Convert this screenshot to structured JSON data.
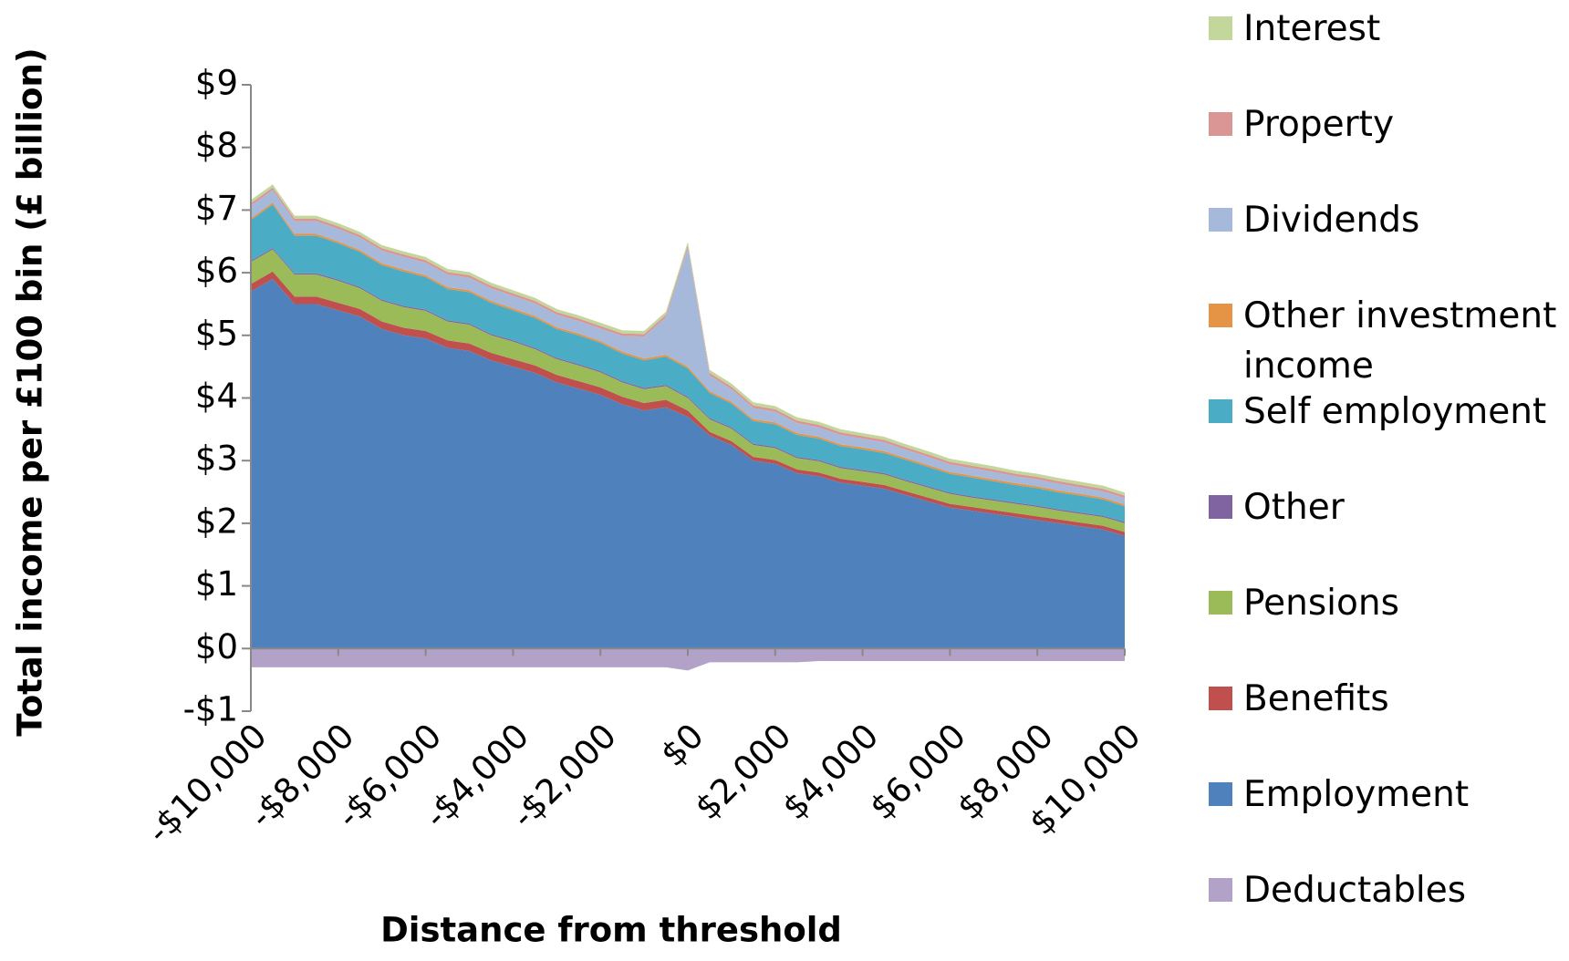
{
  "chart_data": {
    "type": "stacked_area",
    "x_label": "Distance from threshold",
    "y_label": "Total income per £100 bin (£ billion)",
    "x": [
      -10000,
      -9500,
      -9000,
      -8500,
      -8000,
      -7500,
      -7000,
      -6500,
      -6000,
      -5500,
      -5000,
      -4500,
      -4000,
      -3500,
      -3000,
      -2500,
      -2000,
      -1500,
      -1000,
      -500,
      0,
      500,
      1000,
      1500,
      2000,
      2500,
      3000,
      3500,
      4000,
      4500,
      5000,
      5500,
      6000,
      6500,
      7000,
      7500,
      8000,
      8500,
      9000,
      9500,
      10000
    ],
    "xlim": [
      -10000,
      10000
    ],
    "xticks": [
      {
        "value": -10000,
        "label": "-$10,000"
      },
      {
        "value": -8000,
        "label": "-$8,000"
      },
      {
        "value": -6000,
        "label": "-$6,000"
      },
      {
        "value": -4000,
        "label": "-$4,000"
      },
      {
        "value": -2000,
        "label": "-$2,000"
      },
      {
        "value": 0,
        "label": "$0"
      },
      {
        "value": 2000,
        "label": "$2,000"
      },
      {
        "value": 4000,
        "label": "$4,000"
      },
      {
        "value": 6000,
        "label": "$6,000"
      },
      {
        "value": 8000,
        "label": "$8,000"
      },
      {
        "value": 10000,
        "label": "$10,000"
      }
    ],
    "ylim": [
      -1,
      9
    ],
    "yticks": [
      {
        "value": -1,
        "label": "-$1"
      },
      {
        "value": 0,
        "label": "$0"
      },
      {
        "value": 1,
        "label": "$1"
      },
      {
        "value": 2,
        "label": "$2"
      },
      {
        "value": 3,
        "label": "$3"
      },
      {
        "value": 4,
        "label": "$4"
      },
      {
        "value": 5,
        "label": "$5"
      },
      {
        "value": 6,
        "label": "$6"
      },
      {
        "value": 7,
        "label": "$7"
      },
      {
        "value": 8,
        "label": "$8"
      },
      {
        "value": 9,
        "label": "$9"
      }
    ],
    "series": [
      {
        "name": "Employment",
        "color": "#4f81bd",
        "values": [
          5.7,
          5.9,
          5.5,
          5.5,
          5.4,
          5.3,
          5.1,
          5.0,
          4.95,
          4.8,
          4.75,
          4.6,
          4.5,
          4.4,
          4.25,
          4.15,
          4.05,
          3.9,
          3.8,
          3.85,
          3.7,
          3.4,
          3.25,
          3.0,
          2.95,
          2.8,
          2.75,
          2.65,
          2.6,
          2.55,
          2.45,
          2.35,
          2.25,
          2.2,
          2.15,
          2.1,
          2.05,
          2.0,
          1.95,
          1.9,
          1.8
        ]
      },
      {
        "name": "Benefits",
        "color": "#c0504d",
        "values": [
          0.12,
          0.12,
          0.12,
          0.12,
          0.12,
          0.12,
          0.12,
          0.12,
          0.12,
          0.12,
          0.12,
          0.12,
          0.12,
          0.12,
          0.12,
          0.12,
          0.12,
          0.12,
          0.12,
          0.12,
          0.1,
          0.06,
          0.06,
          0.06,
          0.06,
          0.06,
          0.06,
          0.06,
          0.06,
          0.06,
          0.06,
          0.06,
          0.06,
          0.06,
          0.06,
          0.06,
          0.06,
          0.06,
          0.06,
          0.06,
          0.06
        ]
      },
      {
        "name": "Pensions",
        "color": "#9bbb59",
        "values": [
          0.35,
          0.35,
          0.35,
          0.35,
          0.35,
          0.33,
          0.33,
          0.33,
          0.32,
          0.3,
          0.3,
          0.28,
          0.28,
          0.26,
          0.25,
          0.25,
          0.24,
          0.23,
          0.22,
          0.22,
          0.2,
          0.2,
          0.2,
          0.19,
          0.19,
          0.18,
          0.18,
          0.17,
          0.17,
          0.17,
          0.16,
          0.16,
          0.16,
          0.15,
          0.15,
          0.15,
          0.15,
          0.14,
          0.14,
          0.14,
          0.14
        ]
      },
      {
        "name": "Other",
        "color": "#8064a2",
        "values": [
          0.02,
          0.02,
          0.02,
          0.02,
          0.02,
          0.02,
          0.02,
          0.02,
          0.02,
          0.02,
          0.02,
          0.02,
          0.02,
          0.02,
          0.02,
          0.02,
          0.02,
          0.02,
          0.02,
          0.02,
          0.02,
          0.02,
          0.02,
          0.02,
          0.02,
          0.02,
          0.02,
          0.02,
          0.02,
          0.02,
          0.02,
          0.02,
          0.02,
          0.02,
          0.02,
          0.02,
          0.02,
          0.02,
          0.02,
          0.02,
          0.02
        ]
      },
      {
        "name": "Self employment",
        "color": "#4bacc6",
        "values": [
          0.65,
          0.7,
          0.6,
          0.6,
          0.58,
          0.56,
          0.55,
          0.55,
          0.52,
          0.5,
          0.5,
          0.5,
          0.48,
          0.48,
          0.46,
          0.46,
          0.45,
          0.44,
          0.44,
          0.45,
          0.45,
          0.4,
          0.38,
          0.36,
          0.36,
          0.35,
          0.34,
          0.33,
          0.33,
          0.32,
          0.32,
          0.31,
          0.3,
          0.3,
          0.29,
          0.28,
          0.28,
          0.27,
          0.27,
          0.26,
          0.25
        ]
      },
      {
        "name": "Other investment income",
        "color": "#e59446",
        "values": [
          0.03,
          0.03,
          0.03,
          0.03,
          0.03,
          0.03,
          0.03,
          0.03,
          0.03,
          0.03,
          0.03,
          0.03,
          0.03,
          0.03,
          0.03,
          0.03,
          0.03,
          0.03,
          0.03,
          0.03,
          0.03,
          0.03,
          0.03,
          0.03,
          0.03,
          0.03,
          0.03,
          0.03,
          0.03,
          0.03,
          0.03,
          0.03,
          0.03,
          0.03,
          0.03,
          0.03,
          0.03,
          0.03,
          0.03,
          0.03,
          0.03
        ]
      },
      {
        "name": "Dividends",
        "color": "#a6b9db",
        "values": [
          0.2,
          0.2,
          0.2,
          0.2,
          0.2,
          0.2,
          0.2,
          0.2,
          0.2,
          0.2,
          0.2,
          0.2,
          0.2,
          0.2,
          0.2,
          0.2,
          0.2,
          0.25,
          0.35,
          0.6,
          1.9,
          0.25,
          0.2,
          0.18,
          0.17,
          0.16,
          0.15,
          0.15,
          0.14,
          0.14,
          0.13,
          0.13,
          0.12,
          0.12,
          0.12,
          0.11,
          0.11,
          0.11,
          0.1,
          0.1,
          0.1
        ]
      },
      {
        "name": "Property",
        "color": "#d99694",
        "values": [
          0.04,
          0.04,
          0.04,
          0.04,
          0.04,
          0.04,
          0.04,
          0.04,
          0.04,
          0.04,
          0.04,
          0.04,
          0.04,
          0.04,
          0.04,
          0.04,
          0.04,
          0.04,
          0.04,
          0.04,
          0.04,
          0.04,
          0.04,
          0.04,
          0.04,
          0.04,
          0.04,
          0.04,
          0.04,
          0.04,
          0.04,
          0.04,
          0.04,
          0.04,
          0.04,
          0.04,
          0.04,
          0.04,
          0.04,
          0.04,
          0.04
        ]
      },
      {
        "name": "Interest",
        "color": "#c3d69b",
        "values": [
          0.05,
          0.05,
          0.05,
          0.05,
          0.05,
          0.05,
          0.05,
          0.05,
          0.05,
          0.05,
          0.05,
          0.05,
          0.05,
          0.05,
          0.05,
          0.05,
          0.05,
          0.05,
          0.05,
          0.05,
          0.05,
          0.05,
          0.05,
          0.05,
          0.05,
          0.05,
          0.05,
          0.05,
          0.05,
          0.05,
          0.05,
          0.05,
          0.05,
          0.05,
          0.05,
          0.05,
          0.05,
          0.05,
          0.05,
          0.05,
          0.05
        ]
      },
      {
        "name": "Deductables",
        "color": "#b3a2c7",
        "values": [
          -0.3,
          -0.3,
          -0.3,
          -0.3,
          -0.3,
          -0.3,
          -0.3,
          -0.3,
          -0.3,
          -0.3,
          -0.3,
          -0.3,
          -0.3,
          -0.3,
          -0.3,
          -0.3,
          -0.3,
          -0.3,
          -0.3,
          -0.3,
          -0.35,
          -0.22,
          -0.22,
          -0.22,
          -0.22,
          -0.22,
          -0.2,
          -0.2,
          -0.2,
          -0.2,
          -0.2,
          -0.2,
          -0.2,
          -0.2,
          -0.2,
          -0.2,
          -0.2,
          -0.2,
          -0.2,
          -0.2,
          -0.2
        ]
      }
    ],
    "legend_order": [
      8,
      7,
      6,
      5,
      4,
      3,
      2,
      1,
      0,
      9
    ],
    "legend_position": "right"
  }
}
